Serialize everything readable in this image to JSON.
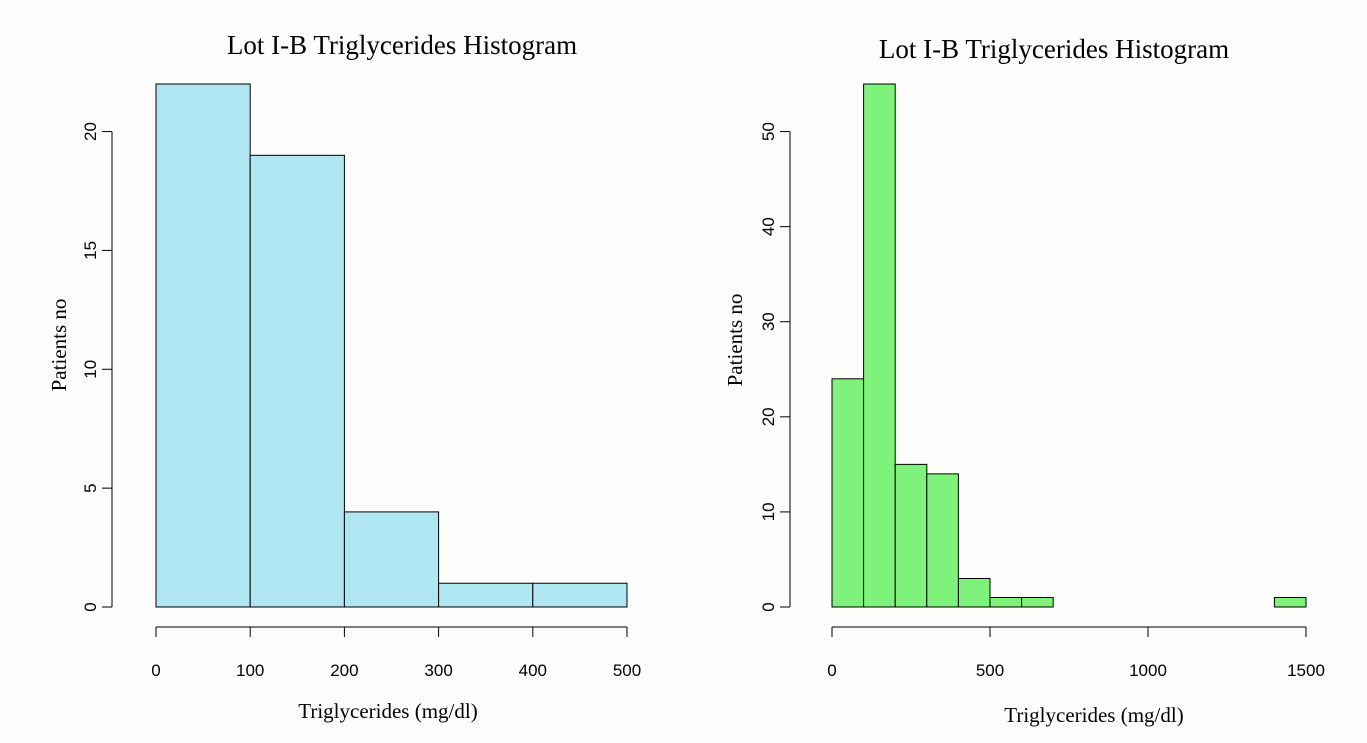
{
  "chart_data": [
    {
      "type": "bar",
      "title": "Lot I-B Triglycerides Histogram",
      "xlabel": "Triglycerides (mg/dl)",
      "ylabel": "Patients no",
      "bar_color": "#b0e6f2",
      "bins": [
        [
          0,
          100
        ],
        [
          100,
          200
        ],
        [
          200,
          300
        ],
        [
          300,
          400
        ],
        [
          400,
          500
        ]
      ],
      "values": [
        22,
        19,
        4,
        1,
        1
      ],
      "xlim": [
        0,
        500
      ],
      "ylim": [
        0,
        22
      ],
      "xticks": [
        0,
        100,
        200,
        300,
        400,
        500
      ],
      "yticks": [
        0,
        5,
        10,
        15,
        20
      ],
      "grid": false
    },
    {
      "type": "bar",
      "title": "Lot I-B Triglycerides Histogram",
      "xlabel": "Triglycerides (mg/dl)",
      "ylabel": "Patients no",
      "bar_color": "#7ef27a",
      "bins": [
        [
          0,
          100
        ],
        [
          100,
          200
        ],
        [
          200,
          300
        ],
        [
          300,
          400
        ],
        [
          400,
          500
        ],
        [
          500,
          600
        ],
        [
          600,
          700
        ],
        [
          700,
          800
        ],
        [
          800,
          900
        ],
        [
          900,
          1000
        ],
        [
          1000,
          1100
        ],
        [
          1100,
          1200
        ],
        [
          1200,
          1300
        ],
        [
          1300,
          1400
        ],
        [
          1400,
          1500
        ]
      ],
      "values": [
        24,
        55,
        15,
        14,
        3,
        1,
        1,
        0,
        0,
        0,
        0,
        0,
        0,
        0,
        1
      ],
      "xlim": [
        0,
        1500
      ],
      "ylim": [
        0,
        55
      ],
      "xticks": [
        0,
        500,
        1000,
        1500
      ],
      "yticks": [
        0,
        10,
        20,
        30,
        40,
        50
      ],
      "grid": false
    }
  ]
}
